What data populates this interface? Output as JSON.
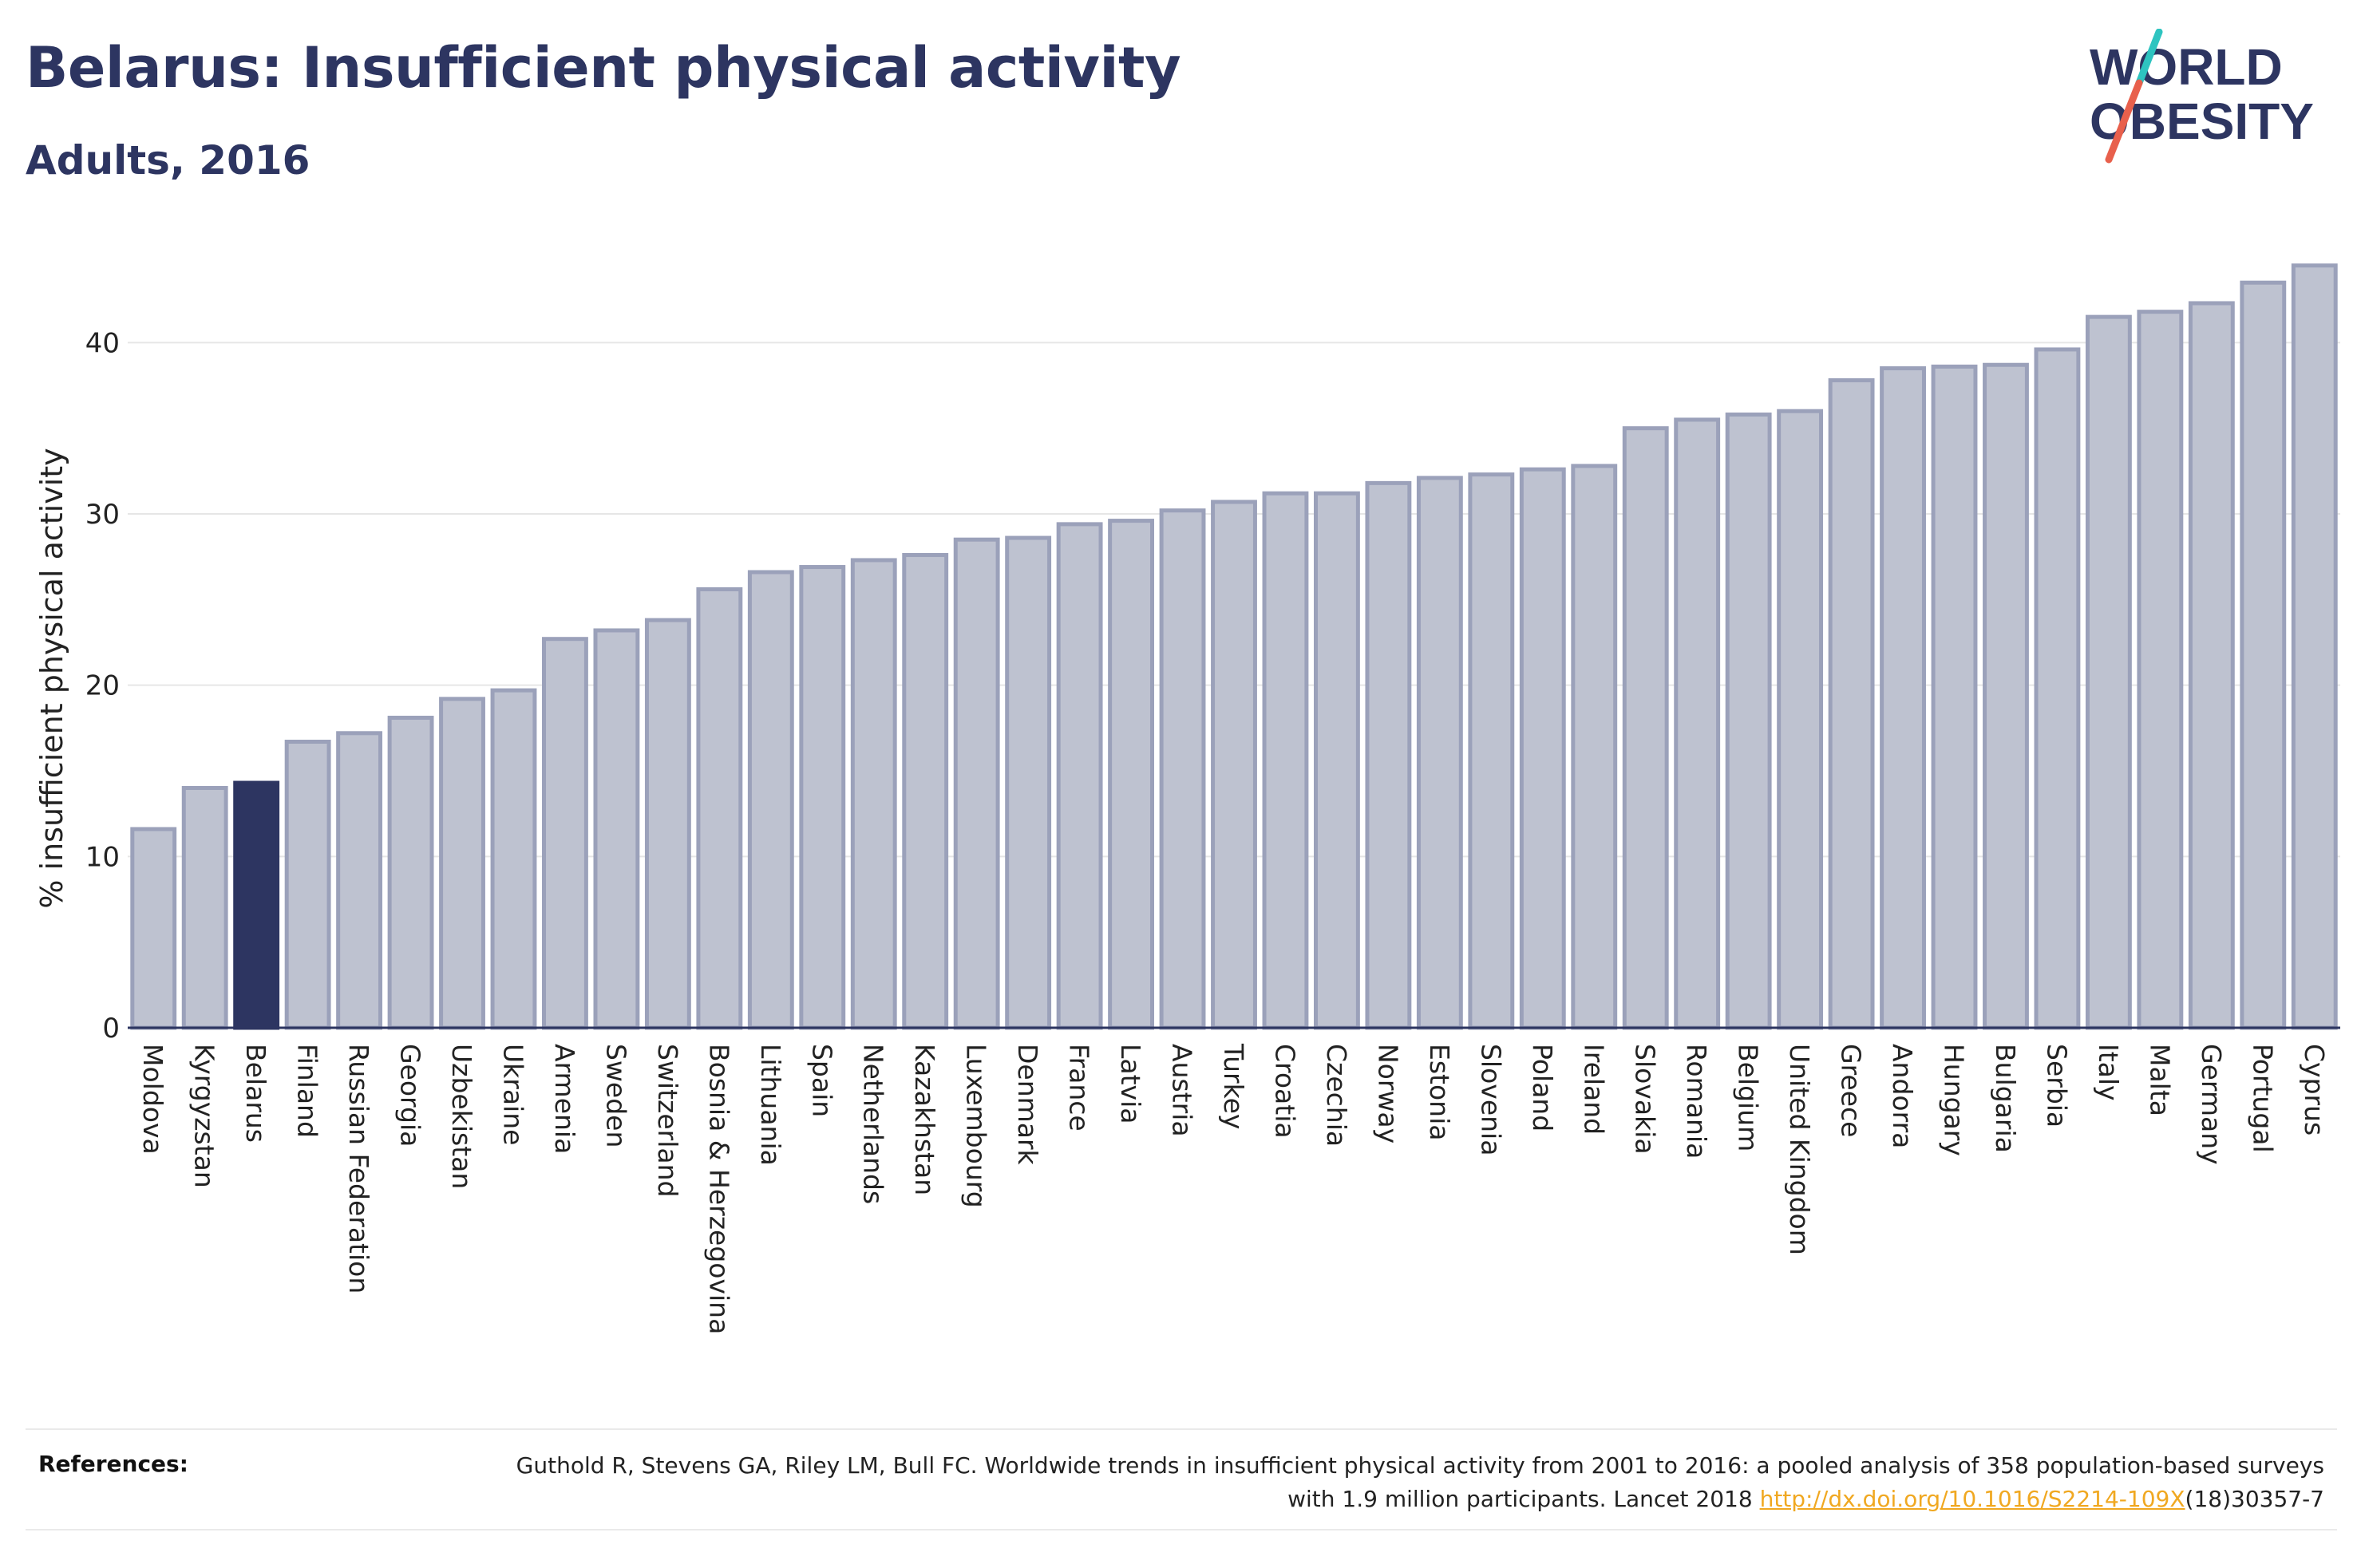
{
  "header": {
    "title": "Belarus: Insufficient physical activity",
    "subtitle": "Adults, 2016"
  },
  "logo": {
    "line1": "WORLD",
    "line2": "OBESITY",
    "colors": {
      "text": "#2d3561",
      "slash_teal": "#2ec4c0",
      "slash_coral": "#e8604c"
    }
  },
  "chart_data": {
    "type": "bar",
    "title": "Belarus: Insufficient physical activity",
    "subtitle": "Adults, 2016",
    "xlabel": "",
    "ylabel": "% insufficient physical activity",
    "ylim": [
      0,
      45
    ],
    "yticks": [
      0,
      10,
      20,
      30,
      40
    ],
    "grid": true,
    "highlight": "Belarus",
    "colors": {
      "bar": "#bec2d0",
      "bar_edge": "#9ba1ba",
      "highlight": "#2d3561",
      "grid": "#e6e6e6",
      "axis": "#2d3561"
    },
    "categories": [
      "Moldova",
      "Kyrgyzstan",
      "Belarus",
      "Finland",
      "Russian Federation",
      "Georgia",
      "Uzbekistan",
      "Ukraine",
      "Armenia",
      "Sweden",
      "Switzerland",
      "Bosnia & Herzegovina",
      "Lithuania",
      "Spain",
      "Netherlands",
      "Kazakhstan",
      "Luxembourg",
      "Denmark",
      "France",
      "Latvia",
      "Austria",
      "Turkey",
      "Croatia",
      "Czechia",
      "Norway",
      "Estonia",
      "Slovenia",
      "Poland",
      "Ireland",
      "Slovakia",
      "Romania",
      "Belgium",
      "United Kingdom",
      "Greece",
      "Andorra",
      "Hungary",
      "Bulgaria",
      "Serbia",
      "Italy",
      "Malta",
      "Germany",
      "Portugal",
      "Cyprus"
    ],
    "values": [
      11.6,
      14.0,
      14.3,
      16.7,
      17.2,
      18.1,
      19.2,
      19.7,
      22.7,
      23.2,
      23.8,
      25.6,
      26.6,
      26.9,
      27.3,
      27.6,
      28.5,
      28.6,
      29.4,
      29.6,
      30.2,
      30.7,
      31.2,
      31.2,
      31.8,
      32.1,
      32.3,
      32.6,
      32.8,
      35.0,
      35.5,
      35.8,
      36.0,
      37.8,
      38.5,
      38.6,
      38.7,
      39.6,
      41.5,
      41.8,
      42.3,
      43.5,
      44.5
    ]
  },
  "references": {
    "label": "References:",
    "text": "Guthold R, Stevens GA, Riley LM, Bull FC. Worldwide trends in insufficient physical activity from 2001 to 2016: a pooled analysis of 358 population-based surveys with 1.9 million participants. Lancet 2018 ",
    "link_text": "http://dx.doi.org/10.1016/S2214-109X",
    "suffix": "(18)30357-7",
    "link_color": "#f0a821"
  }
}
